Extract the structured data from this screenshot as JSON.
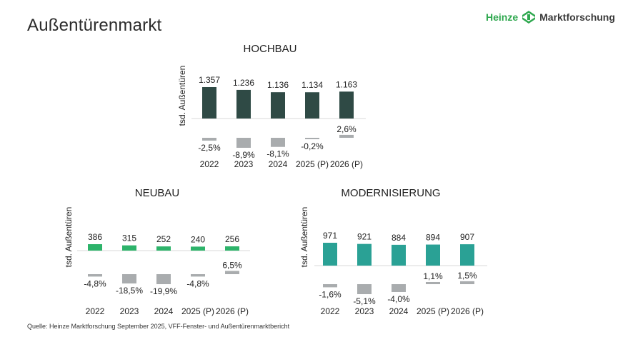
{
  "page": {
    "title": "Außentürenmarkt",
    "source": "Quelle: Heinze Marktforschung September 2025, VFF-Fenster- und Außentürenmarktbericht"
  },
  "logo": {
    "brand": "Heinze",
    "suffix": "Marktforschung",
    "color_brand": "#2fa84f",
    "color_text": "#3a3a3a"
  },
  "colors": {
    "hochbau": "#2f4a45",
    "neubau": "#2db36a",
    "modernisierung": "#2aa195",
    "change_bar": "#a9acae",
    "baseline": "#d9d9d9"
  },
  "chart_data": [
    {
      "id": "hochbau",
      "type": "bar",
      "title": "HOCHBAU",
      "ylabel": "tsd. Außentüren",
      "categories": [
        "2022",
        "2023",
        "2024",
        "2025 (P)",
        "2026 (P)"
      ],
      "values": [
        1357,
        1236,
        1136,
        1134,
        1163
      ],
      "value_labels": [
        "1.357",
        "1.236",
        "1.136",
        "1.134",
        "1.163"
      ],
      "changes": [
        -2.5,
        -8.9,
        -8.1,
        -0.2,
        2.6
      ],
      "change_labels": [
        "-2,5%",
        "-8,9%",
        "-8,1%",
        "-0,2%",
        "2,6%"
      ]
    },
    {
      "id": "neubau",
      "type": "bar",
      "title": "NEUBAU",
      "ylabel": "tsd. Außentüren",
      "categories": [
        "2022",
        "2023",
        "2024",
        "2025 (P)",
        "2026 (P)"
      ],
      "values": [
        386,
        315,
        252,
        240,
        256
      ],
      "value_labels": [
        "386",
        "315",
        "252",
        "240",
        "256"
      ],
      "changes": [
        -4.8,
        -18.5,
        -19.9,
        -4.8,
        6.5
      ],
      "change_labels": [
        "-4,8%",
        "-18,5%",
        "-19,9%",
        "-4,8%",
        "6,5%"
      ]
    },
    {
      "id": "modernisierung",
      "type": "bar",
      "title": "MODERNISIERUNG",
      "ylabel": "tsd. Außentüren",
      "categories": [
        "2022",
        "2023",
        "2024",
        "2025 (P)",
        "2026 (P)"
      ],
      "values": [
        971,
        921,
        884,
        894,
        907
      ],
      "value_labels": [
        "971",
        "921",
        "884",
        "894",
        "907"
      ],
      "changes": [
        -1.6,
        -5.1,
        -4.0,
        1.1,
        1.5
      ],
      "change_labels": [
        "-1,6%",
        "-5,1%",
        "-4,0%",
        "1,1%",
        "1,5%"
      ]
    }
  ]
}
